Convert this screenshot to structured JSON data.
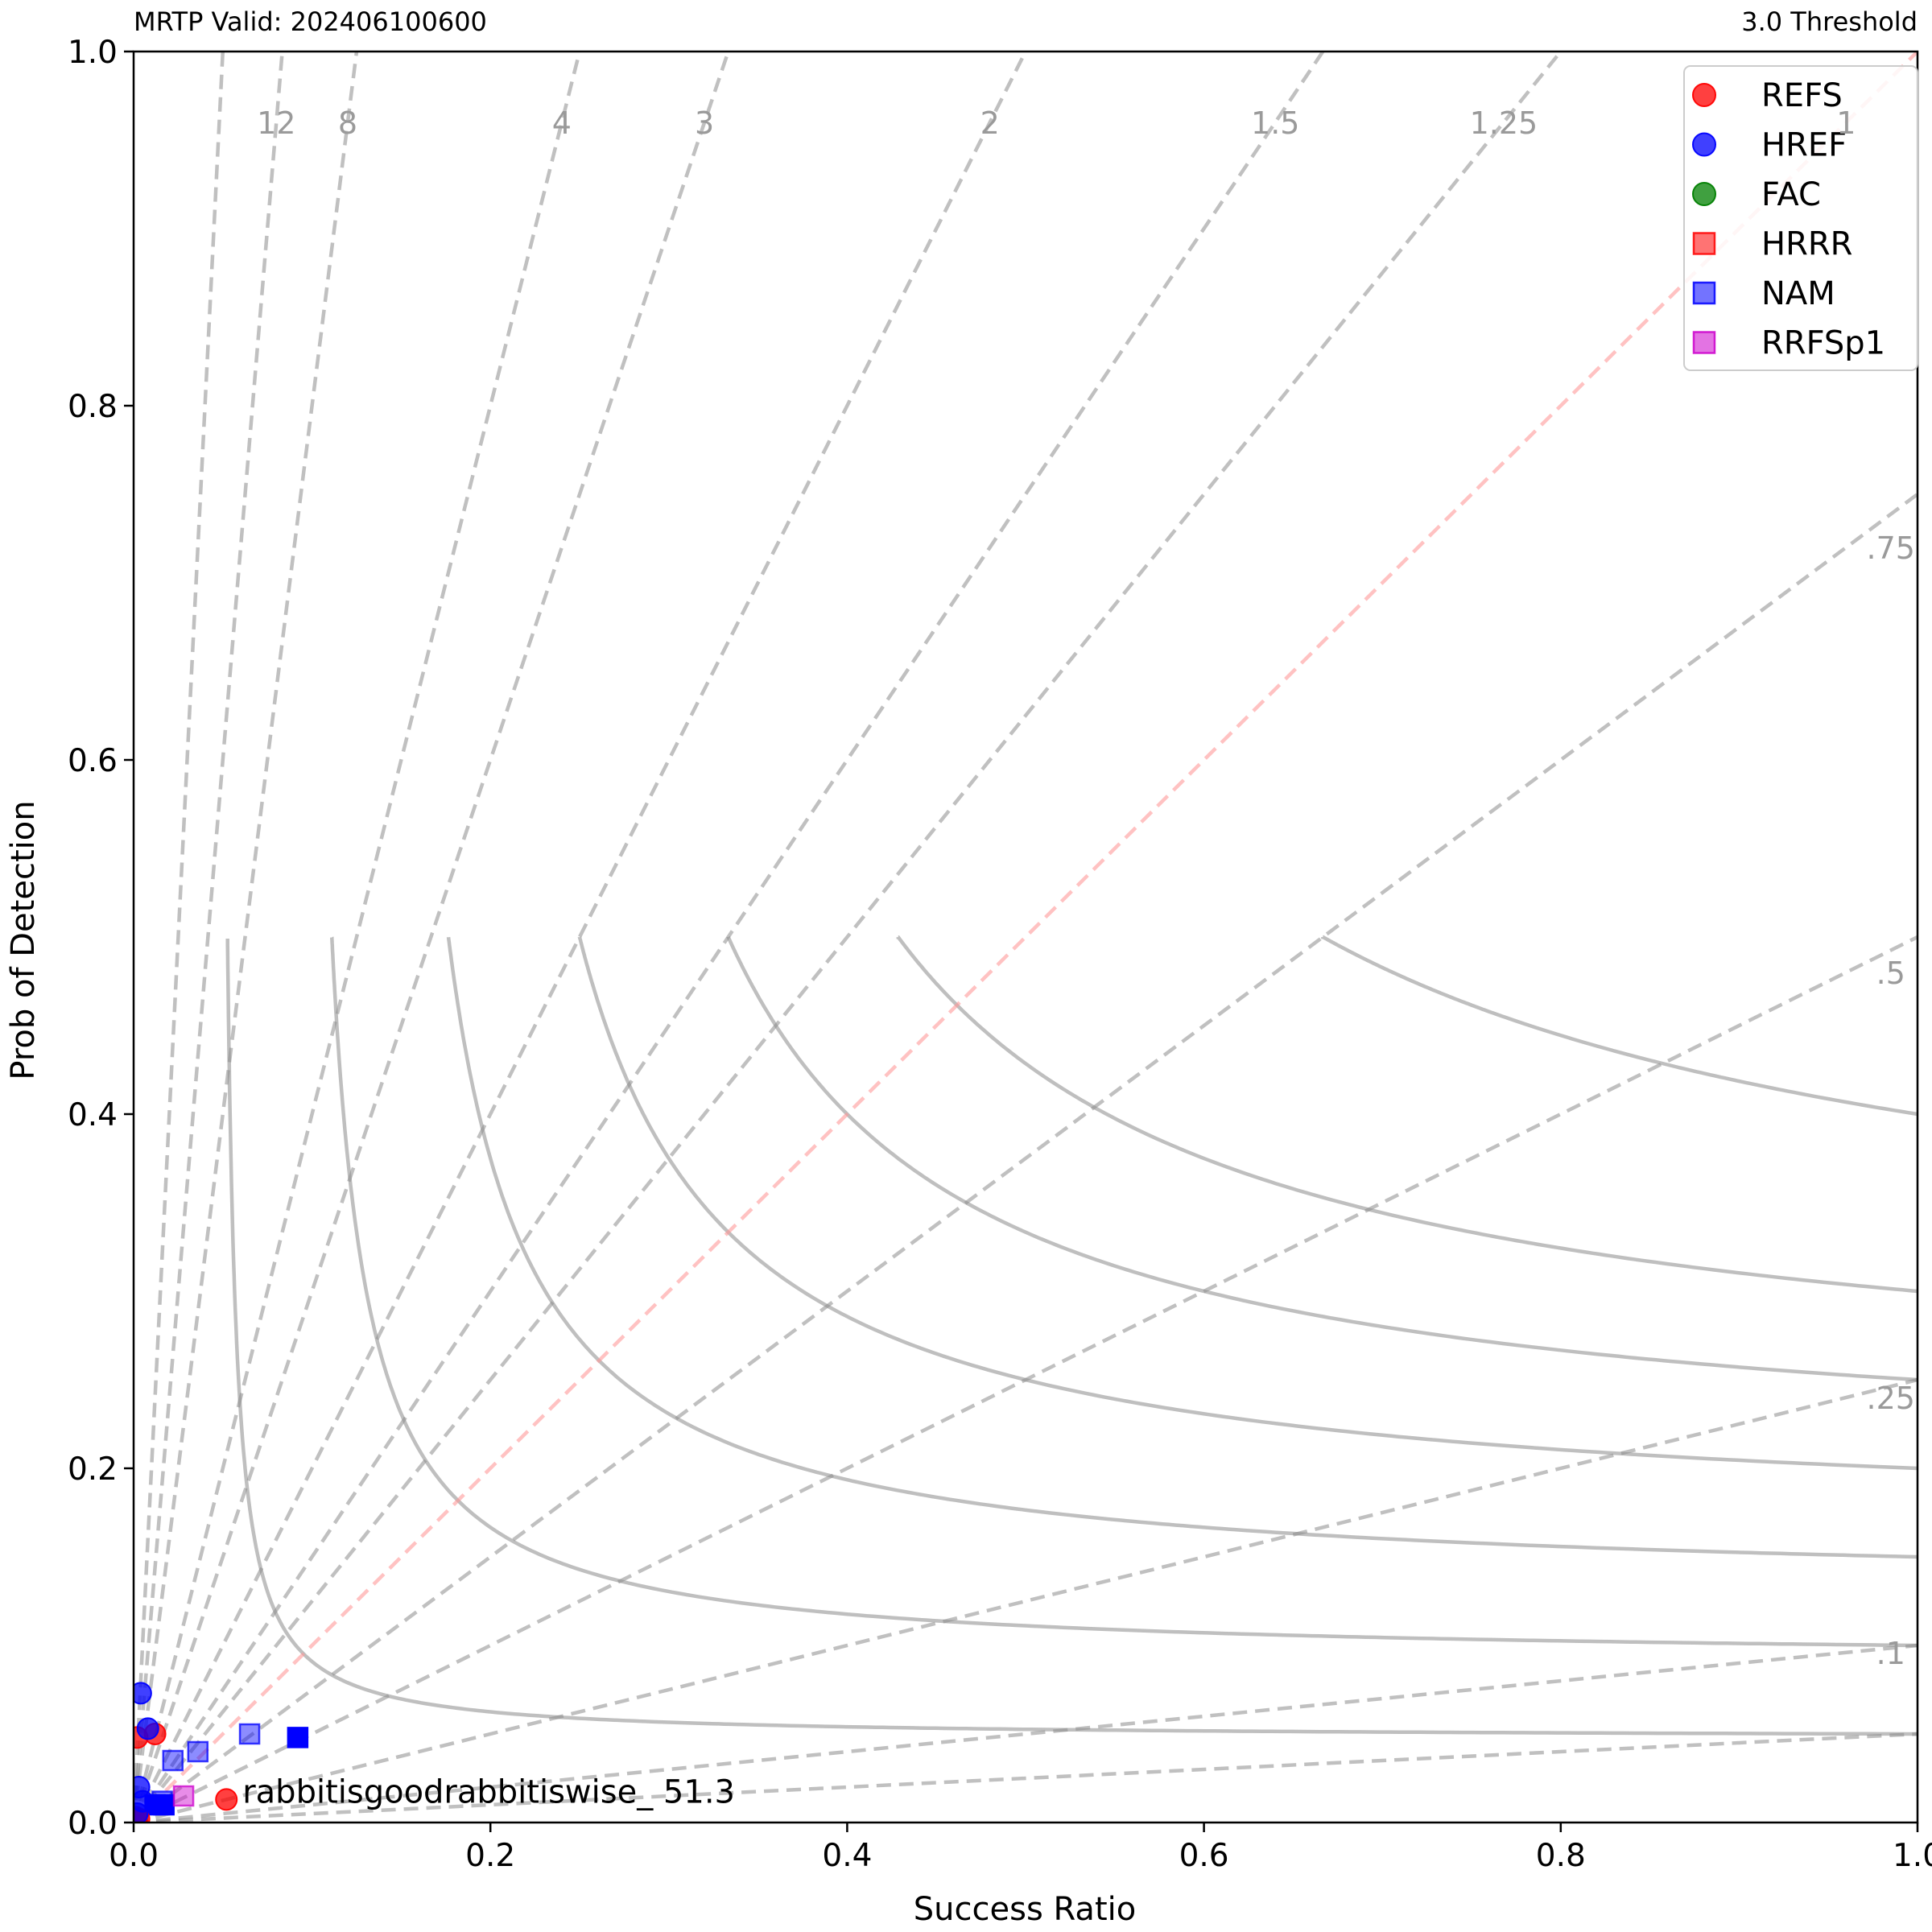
{
  "titles": {
    "left": "MRTP Valid: 202406100600",
    "right": "3.0 Threshold"
  },
  "chart_data": {
    "type": "scatter",
    "xlabel": "Success Ratio",
    "ylabel": "Prob of Detection",
    "xlim": [
      0,
      1
    ],
    "ylim": [
      0,
      1
    ],
    "xticks": [
      "0.0",
      "0.2",
      "0.4",
      "0.6",
      "0.8",
      "1.0"
    ],
    "yticks": [
      "0.0",
      "0.2",
      "0.4",
      "0.6",
      "0.8",
      "1.0"
    ],
    "legend_position": "top-right",
    "background": {
      "csi_contours": [
        0.05,
        0.1,
        0.15,
        0.2,
        0.25,
        0.3,
        0.4,
        0.5,
        0.6,
        0.7,
        0.8,
        0.9
      ],
      "bias_lines": [
        {
          "bias": 20,
          "label": ""
        },
        {
          "bias": 12,
          "label": "12"
        },
        {
          "bias": 8,
          "label": "8"
        },
        {
          "bias": 4,
          "label": "4"
        },
        {
          "bias": 3,
          "label": "3"
        },
        {
          "bias": 2,
          "label": "2"
        },
        {
          "bias": 1.5,
          "label": "1.5"
        },
        {
          "bias": 1.25,
          "label": "1.25"
        },
        {
          "bias": 1,
          "label": "1"
        },
        {
          "bias": 0.75,
          "label": ".75"
        },
        {
          "bias": 0.5,
          "label": ".5"
        },
        {
          "bias": 0.25,
          "label": ".25"
        },
        {
          "bias": 0.1,
          "label": ".1"
        },
        {
          "bias": 0.05,
          "label": ""
        }
      ]
    },
    "series": [
      {
        "name": "REFS",
        "marker": "circle",
        "color": "#ff0000",
        "alpha": 0.75,
        "points": [
          [
            0.002,
            0.048
          ],
          [
            0.012,
            0.05
          ],
          [
            0.052,
            0.013
          ],
          [
            0.003,
            0.002
          ],
          [
            0.001,
            0.003
          ]
        ]
      },
      {
        "name": "HREF",
        "marker": "circle",
        "color": "#0000ff",
        "alpha": 0.75,
        "points": [
          [
            0.004,
            0.073
          ],
          [
            0.008,
            0.053
          ],
          [
            0.003,
            0.02
          ],
          [
            0.005,
            0.012
          ],
          [
            0.002,
            0.005
          ]
        ]
      },
      {
        "name": "FAC",
        "marker": "circle",
        "color": "#008000",
        "alpha": 0.75,
        "points": []
      },
      {
        "name": "HRRR",
        "marker": "square",
        "color": "#ff0000",
        "alpha": 0.55,
        "points": []
      },
      {
        "name": "NAM",
        "marker": "square",
        "color": "#0000ff",
        "alpha": 0.45,
        "points": [
          [
            0.065,
            0.05
          ],
          [
            0.036,
            0.04
          ],
          [
            0.022,
            0.035
          ],
          [
            0.016,
            0.012
          ]
        ]
      },
      {
        "name": "RRFSp1",
        "marker": "square",
        "color": "#cc00cc",
        "alpha": 0.45,
        "points": [
          [
            0.028,
            0.015
          ]
        ]
      }
    ],
    "extra_points": [
      {
        "marker": "square",
        "color": "#0000ff",
        "alpha": 1.0,
        "points": [
          [
            0.092,
            0.048
          ],
          [
            0.017,
            0.01
          ],
          [
            0.012,
            0.01
          ]
        ]
      },
      {
        "marker": "square",
        "color": "#8b0000",
        "alpha": 1.0,
        "points": [
          [
            0.002,
            0.001
          ]
        ]
      }
    ],
    "annotations": [
      {
        "text": "rabbitisgoodrabbitiswise_ 51.3",
        "x": 0.052,
        "y": 0.013
      }
    ]
  }
}
